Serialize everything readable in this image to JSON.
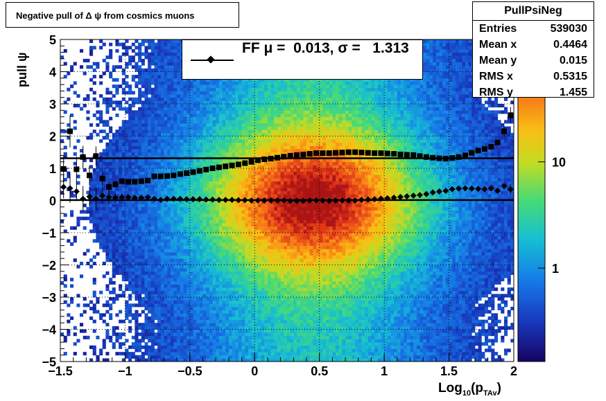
{
  "title": "Negative pull of Δ ψ from cosmics muons",
  "stats": {
    "name": "PullPsiNeg",
    "rows": [
      {
        "label": "Entries",
        "value": "539030"
      },
      {
        "label": "Mean x",
        "value": "0.4464"
      },
      {
        "label": "Mean y",
        "value": "0.015"
      },
      {
        "label": "RMS x",
        "value": "0.5315"
      },
      {
        "label": "RMS y",
        "value": "1.455"
      }
    ]
  },
  "legend": {
    "text": "FF μ =  0.013, σ =   1.313"
  },
  "axes": {
    "ylabel": "pull ψ",
    "xlabel_main": "Log",
    "xlabel_sub1": "10",
    "xlabel_mid": "(p",
    "xlabel_sub2": "TAv",
    "xlabel_end": ")"
  },
  "chart_data": {
    "type": "heatmap",
    "title": "Negative pull of Δ ψ from cosmics muons",
    "xlabel": "Log10(pTAv)",
    "ylabel": "pull ψ",
    "xlim": [
      -1.5,
      2
    ],
    "ylim": [
      -5,
      5
    ],
    "xticks": [
      "−1.5",
      "−1",
      "−0.5",
      "0",
      "0.5",
      "1",
      "1.5",
      "2"
    ],
    "yticks": [
      "−5",
      "−4",
      "−3",
      "−2",
      "−1",
      "0",
      "1",
      "2",
      "3",
      "4",
      "5"
    ],
    "zscale": "log",
    "zticks": [
      "1",
      "10"
    ],
    "grid": true,
    "legend_position": "top",
    "reference_lines": [
      0.013,
      1.313
    ],
    "series": [
      {
        "marker": "diamond",
        "x": [
          -1.475,
          -1.425,
          -1.375,
          -1.325,
          -1.275,
          -1.225,
          -1.175,
          -1.125,
          -1.075,
          -1.025,
          -0.975,
          -0.925,
          -0.875,
          -0.825,
          -0.775,
          -0.725,
          -0.675,
          -0.625,
          -0.575,
          -0.525,
          -0.475,
          -0.425,
          -0.375,
          -0.325,
          -0.275,
          -0.225,
          -0.175,
          -0.125,
          -0.075,
          -0.025,
          0.025,
          0.075,
          0.125,
          0.175,
          0.225,
          0.275,
          0.325,
          0.375,
          0.425,
          0.475,
          0.525,
          0.575,
          0.625,
          0.675,
          0.725,
          0.775,
          0.825,
          0.875,
          0.925,
          0.975,
          1.025,
          1.075,
          1.125,
          1.175,
          1.225,
          1.275,
          1.325,
          1.375,
          1.425,
          1.475,
          1.525,
          1.575,
          1.625,
          1.675,
          1.725,
          1.775,
          1.825,
          1.875,
          1.925,
          1.975
        ],
        "values": [
          0.42,
          0.38,
          0.28,
          0.05,
          0.12,
          0.05,
          0.15,
          0.1,
          0.08,
          0.1,
          0.1,
          0.08,
          0.08,
          0.1,
          0.05,
          0.02,
          0.05,
          0.05,
          0.05,
          0.04,
          0.04,
          0.04,
          0.03,
          0.03,
          0.02,
          0.02,
          0.02,
          0.01,
          0.01,
          0.0,
          0.0,
          0.0,
          0.0,
          0.0,
          0.0,
          -0.01,
          -0.01,
          -0.01,
          0.0,
          0.0,
          0.0,
          -0.01,
          0.0,
          0.0,
          0.0,
          0.0,
          0.02,
          0.03,
          0.04,
          0.06,
          0.07,
          0.09,
          0.11,
          0.13,
          0.15,
          0.17,
          0.2,
          0.25,
          0.28,
          0.3,
          0.35,
          0.37,
          0.38,
          0.37,
          0.36,
          0.35,
          0.38,
          0.3,
          0.45,
          0.35
        ],
        "errors": [
          0.35,
          0.45,
          0.3,
          0.4,
          0.3,
          0.35,
          0.25,
          0.2,
          0.15,
          0.12,
          0.1,
          0.08,
          0.06,
          0.05,
          0.04,
          0.04,
          0.03,
          0.03,
          0.03,
          0.03,
          0.03,
          0.03,
          0.03,
          0.03,
          0.03,
          0.03,
          0.03,
          0.03,
          0.03,
          0.03,
          0.03,
          0.03,
          0.03,
          0.03,
          0.03,
          0.03,
          0.03,
          0.03,
          0.03,
          0.03,
          0.03,
          0.03,
          0.03,
          0.03,
          0.03,
          0.03,
          0.03,
          0.03,
          0.03,
          0.03,
          0.03,
          0.03,
          0.03,
          0.03,
          0.03,
          0.03,
          0.03,
          0.03,
          0.03,
          0.03,
          0.03,
          0.03,
          0.03,
          0.03,
          0.03,
          0.05,
          0.05,
          0.06,
          0.1,
          0.15
        ]
      },
      {
        "marker": "square",
        "x": [
          -1.475,
          -1.425,
          -1.375,
          -1.325,
          -1.275,
          -1.225,
          -1.175,
          -1.125,
          -1.075,
          -1.025,
          -0.975,
          -0.925,
          -0.875,
          -0.825,
          -0.775,
          -0.725,
          -0.675,
          -0.625,
          -0.575,
          -0.525,
          -0.475,
          -0.425,
          -0.375,
          -0.325,
          -0.275,
          -0.225,
          -0.175,
          -0.125,
          -0.075,
          -0.025,
          0.025,
          0.075,
          0.125,
          0.175,
          0.225,
          0.275,
          0.325,
          0.375,
          0.425,
          0.475,
          0.525,
          0.575,
          0.625,
          0.675,
          0.725,
          0.775,
          0.825,
          0.875,
          0.925,
          0.975,
          1.025,
          1.075,
          1.125,
          1.175,
          1.225,
          1.275,
          1.325,
          1.375,
          1.425,
          1.475,
          1.525,
          1.575,
          1.625,
          1.675,
          1.725,
          1.775,
          1.825,
          1.875,
          1.925,
          1.975
        ],
        "values": [
          0.98,
          2.15,
          0.97,
          1.35,
          0.78,
          1.38,
          0.68,
          0.42,
          0.5,
          0.6,
          0.58,
          0.58,
          0.6,
          0.62,
          0.75,
          0.75,
          0.76,
          0.78,
          0.82,
          0.85,
          0.88,
          0.92,
          0.96,
          1.0,
          1.03,
          1.06,
          1.09,
          1.12,
          1.16,
          1.2,
          1.25,
          1.28,
          1.3,
          1.33,
          1.36,
          1.39,
          1.41,
          1.43,
          1.45,
          1.47,
          1.47,
          1.47,
          1.48,
          1.49,
          1.5,
          1.5,
          1.49,
          1.48,
          1.47,
          1.47,
          1.46,
          1.45,
          1.43,
          1.42,
          1.41,
          1.38,
          1.35,
          1.33,
          1.31,
          1.3,
          1.32,
          1.35,
          1.4,
          1.48,
          1.55,
          1.6,
          1.67,
          1.8,
          2.15,
          2.65
        ],
        "errors": [
          0.4,
          0.5,
          0.4,
          0.35,
          0.3,
          0.3,
          0.2,
          0.15,
          0.1,
          0.08,
          0.07,
          0.06,
          0.05,
          0.04,
          0.04,
          0.03,
          0.03,
          0.03,
          0.03,
          0.03,
          0.03,
          0.03,
          0.03,
          0.03,
          0.03,
          0.03,
          0.03,
          0.03,
          0.03,
          0.03,
          0.03,
          0.03,
          0.03,
          0.03,
          0.03,
          0.03,
          0.03,
          0.03,
          0.03,
          0.03,
          0.03,
          0.03,
          0.03,
          0.03,
          0.03,
          0.03,
          0.03,
          0.03,
          0.03,
          0.03,
          0.03,
          0.03,
          0.03,
          0.03,
          0.03,
          0.03,
          0.03,
          0.03,
          0.03,
          0.03,
          0.03,
          0.03,
          0.03,
          0.03,
          0.04,
          0.05,
          0.06,
          0.08,
          0.15,
          0.25
        ]
      }
    ]
  }
}
